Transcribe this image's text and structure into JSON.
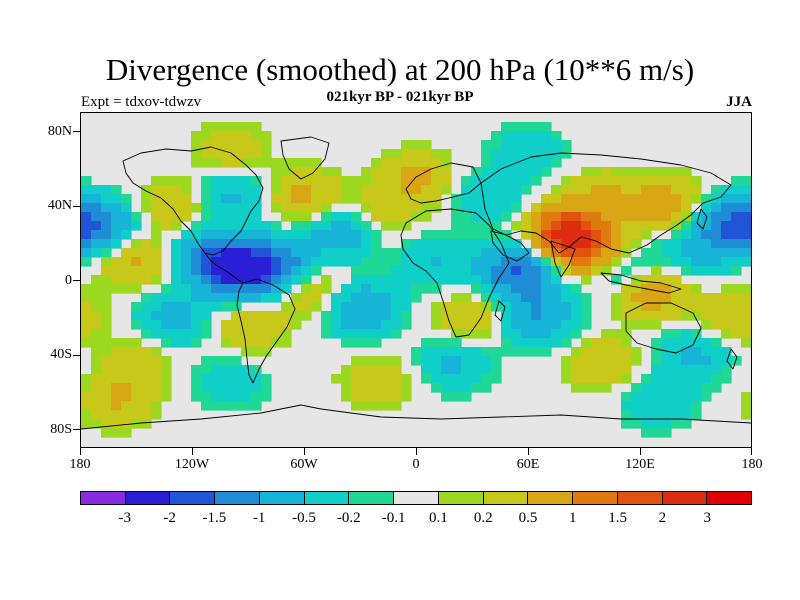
{
  "title": "Divergence (smoothed) at 200 hPa (10**6 m/s)",
  "subtitle": "021kyr BP - 021kyr BP",
  "experiment": "Expt = tdxov-tdwzv",
  "season": "JJA",
  "map": {
    "projection": "cylindrical equidistant",
    "lon_range": [
      -180,
      180
    ],
    "lat_range": [
      -90,
      90
    ],
    "background_color": "#e6e6e6",
    "lat_labels": [
      "80N",
      "40N",
      "0",
      "40S",
      "80S"
    ],
    "lon_labels": [
      "180",
      "120W",
      "60W",
      "0",
      "60E",
      "120E",
      "180"
    ]
  },
  "colorbar": {
    "labels": [
      "-3",
      "-2",
      "-1.5",
      "-1",
      "-0.5",
      "-0.2",
      "-0.1",
      "0.1",
      "0.2",
      "0.5",
      "1",
      "1.5",
      "2",
      "3"
    ],
    "colors": [
      "#8a2be2",
      "#2a1fd6",
      "#1f55d6",
      "#1f8cd6",
      "#17b4d8",
      "#10cfc8",
      "#20d895",
      "#e6e6e6",
      "#9bd81f",
      "#c8c81a",
      "#d8a614",
      "#e07a10",
      "#e0520e",
      "#dd2c12",
      "#e00000"
    ]
  },
  "field_blobs": [
    {
      "lon": -170,
      "lat": 30,
      "value": -1.0
    },
    {
      "lon": -150,
      "lat": 10,
      "value": 0.6
    },
    {
      "lon": -110,
      "lat": 12,
      "value": -1.2
    },
    {
      "lon": -95,
      "lat": 5,
      "value": -1.8
    },
    {
      "lon": -75,
      "lat": 8,
      "value": -1.3
    },
    {
      "lon": -130,
      "lat": 40,
      "value": 0.5
    },
    {
      "lon": -100,
      "lat": 45,
      "value": -0.6
    },
    {
      "lon": -60,
      "lat": 45,
      "value": 0.6
    },
    {
      "lon": -40,
      "lat": 25,
      "value": -0.8
    },
    {
      "lon": -20,
      "lat": 35,
      "value": 0.4
    },
    {
      "lon": -55,
      "lat": -5,
      "value": 0.6
    },
    {
      "lon": -30,
      "lat": -15,
      "value": -1.0
    },
    {
      "lon": -130,
      "lat": -20,
      "value": -0.7
    },
    {
      "lon": -90,
      "lat": -25,
      "value": 0.5
    },
    {
      "lon": -150,
      "lat": -45,
      "value": 0.4
    },
    {
      "lon": -100,
      "lat": -55,
      "value": -0.4
    },
    {
      "lon": 10,
      "lat": 10,
      "value": -0.5
    },
    {
      "lon": 30,
      "lat": -20,
      "value": 0.5
    },
    {
      "lon": 55,
      "lat": 5,
      "value": -1.6
    },
    {
      "lon": 65,
      "lat": -20,
      "value": -1.0
    },
    {
      "lon": 80,
      "lat": 25,
      "value": 2.0
    },
    {
      "lon": 95,
      "lat": 15,
      "value": 1.2
    },
    {
      "lon": 110,
      "lat": 5,
      "value": -0.9
    },
    {
      "lon": 125,
      "lat": -5,
      "value": 1.0
    },
    {
      "lon": 150,
      "lat": 15,
      "value": -0.6
    },
    {
      "lon": 170,
      "lat": 30,
      "value": -1.4
    },
    {
      "lon": 135,
      "lat": 40,
      "value": 0.8
    },
    {
      "lon": 100,
      "lat": 45,
      "value": 0.5
    },
    {
      "lon": 40,
      "lat": 45,
      "value": -0.5
    },
    {
      "lon": 0,
      "lat": 55,
      "value": 0.6
    },
    {
      "lon": -100,
      "lat": 70,
      "value": 0.4
    },
    {
      "lon": 60,
      "lat": 70,
      "value": -0.4
    },
    {
      "lon": 150,
      "lat": -40,
      "value": -0.6
    },
    {
      "lon": 100,
      "lat": -45,
      "value": 0.5
    },
    {
      "lon": 20,
      "lat": -45,
      "value": -0.6
    },
    {
      "lon": -20,
      "lat": -55,
      "value": 0.4
    },
    {
      "lon": 130,
      "lat": -65,
      "value": -0.5
    },
    {
      "lon": -160,
      "lat": -65,
      "value": 0.5
    },
    {
      "lon": 170,
      "lat": -20,
      "value": 0.5
    }
  ],
  "contour_levels": [
    -3,
    -2,
    -1.5,
    -1,
    -0.5,
    -0.2,
    -0.1,
    0.1,
    0.2,
    0.5,
    1,
    1.5,
    2,
    3
  ]
}
